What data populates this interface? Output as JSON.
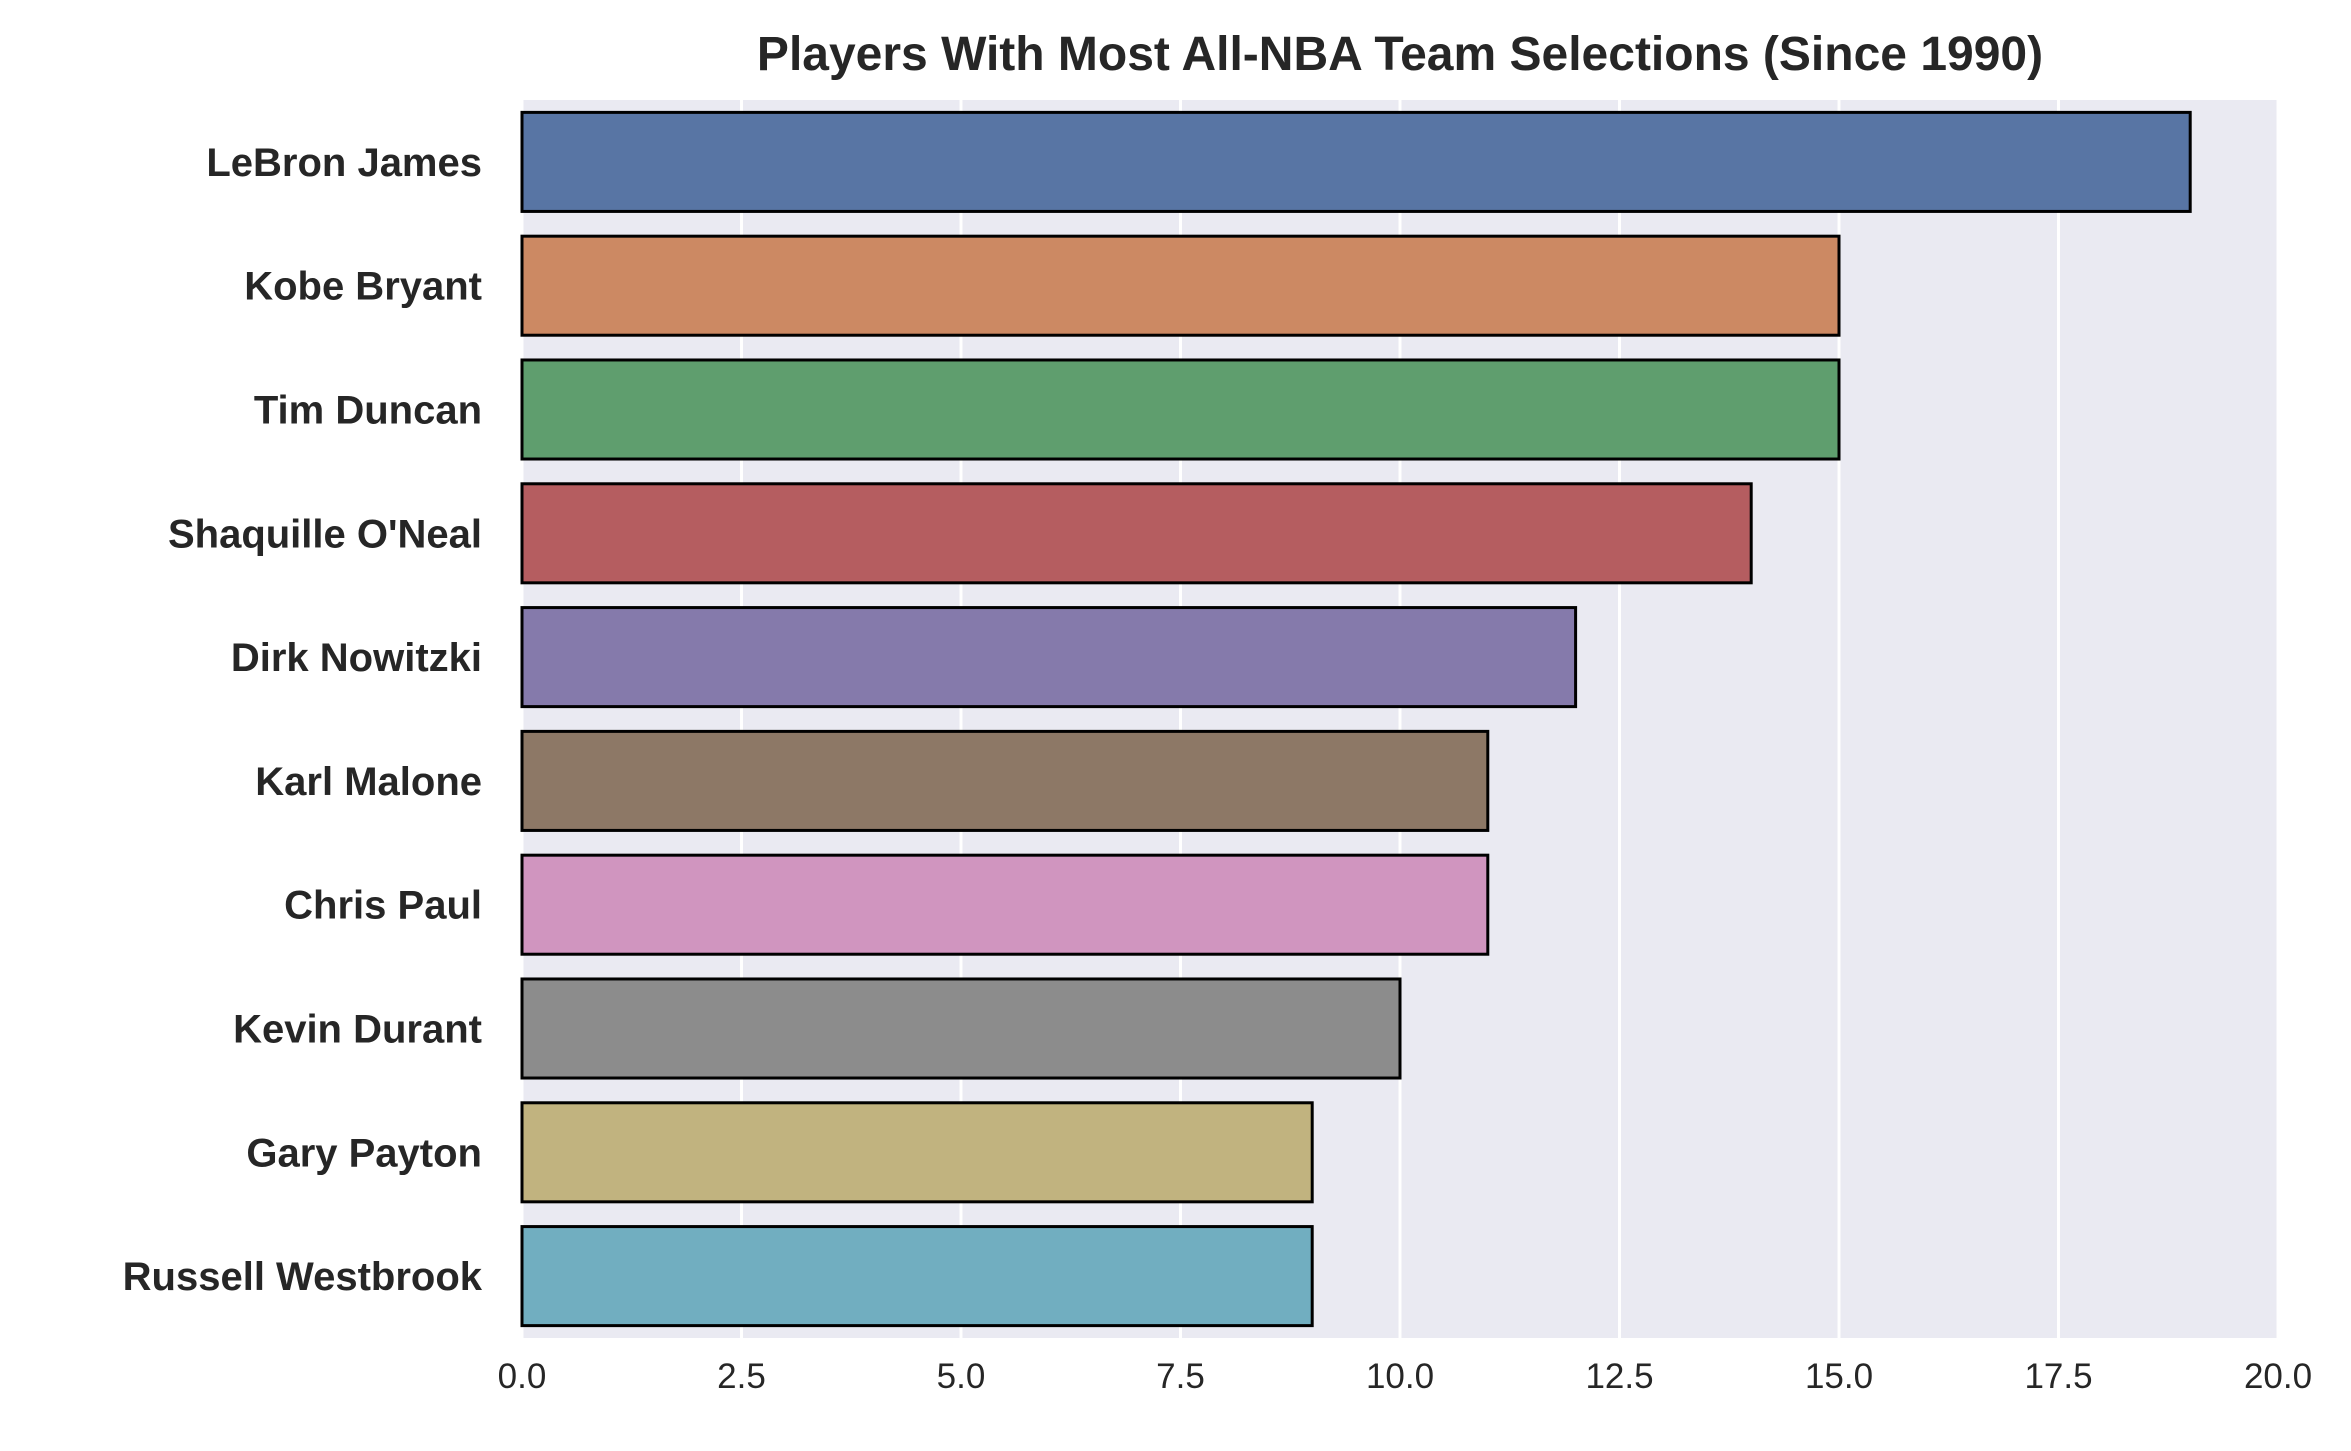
{
  "chart_data": {
    "type": "bar",
    "orientation": "horizontal",
    "title": "Players With Most All-NBA Team Selections (Since 1990)",
    "xlabel": "",
    "ylabel": "",
    "xlim": [
      0,
      20
    ],
    "xticks": [
      "0.0",
      "2.5",
      "5.0",
      "7.5",
      "10.0",
      "12.5",
      "15.0",
      "17.5",
      "20.0"
    ],
    "grid": true,
    "categories": [
      "LeBron James",
      "Kobe Bryant",
      "Tim Duncan",
      "Shaquille O'Neal",
      "Dirk Nowitzki",
      "Karl Malone",
      "Chris Paul",
      "Kevin Durant",
      "Gary Payton",
      "Russell Westbrook"
    ],
    "values": [
      19,
      15,
      15,
      14,
      12,
      11,
      11,
      10,
      9,
      9
    ],
    "colors": [
      "#5875a4",
      "#cc8963",
      "#5f9e6e",
      "#b55d60",
      "#857aab",
      "#8d7866",
      "#d095bf",
      "#8c8c8c",
      "#c1b37f",
      "#71aec0"
    ],
    "background": "#eaeaf2"
  }
}
